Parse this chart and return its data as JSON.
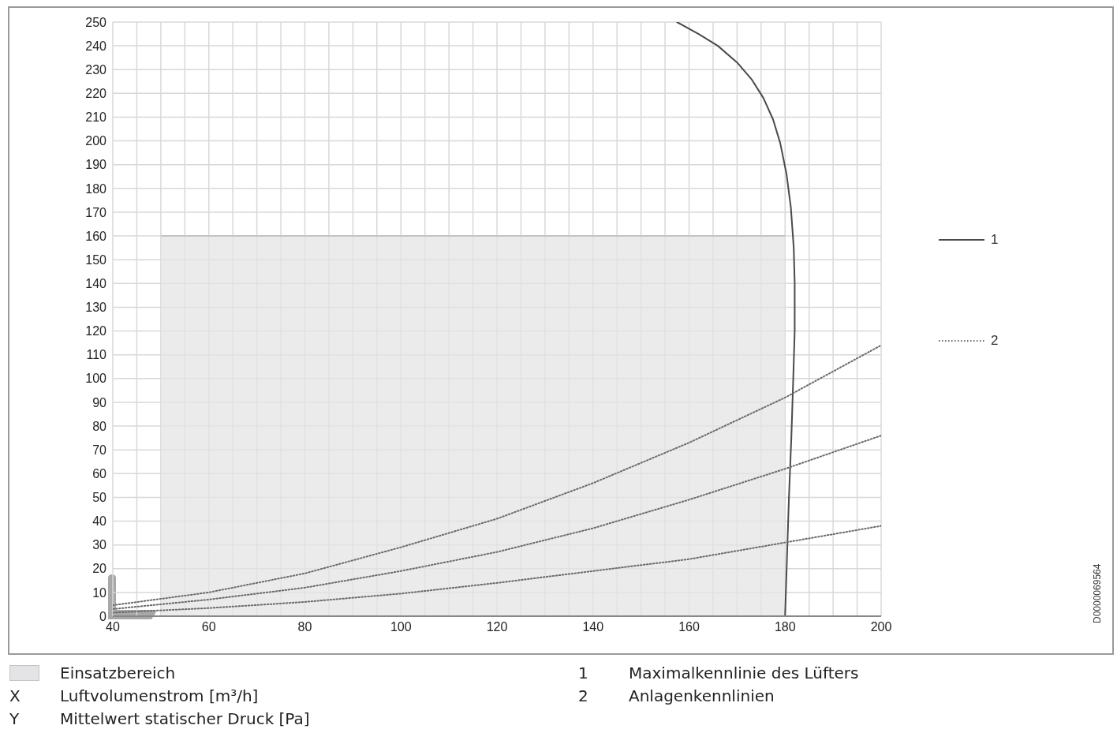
{
  "chart_data": {
    "type": "line",
    "xlabel": "X Luftvolumenstrom [m³/h]",
    "ylabel": "Y Mittelwert statischer Druck [Pa]",
    "xlim": [
      40,
      200
    ],
    "xticks": [
      40,
      {
        "value": 45,
        "label": null
      },
      {
        "value": 50,
        "label": null
      },
      {
        "value": 55,
        "label": null
      },
      60,
      {
        "value": 65,
        "label": null
      },
      {
        "value": 70,
        "label": null
      },
      {
        "value": 75,
        "label": null
      },
      80,
      {
        "value": 85,
        "label": null
      },
      {
        "value": 90,
        "label": null
      },
      {
        "value": 95,
        "label": null
      },
      100,
      {
        "value": 105,
        "label": null
      },
      {
        "value": 110,
        "label": null
      },
      {
        "value": 115,
        "label": null
      },
      120,
      {
        "value": 125,
        "label": null
      },
      {
        "value": 130,
        "label": null
      },
      {
        "value": 135,
        "label": null
      },
      140,
      {
        "value": 145,
        "label": null
      },
      {
        "value": 150,
        "label": null
      },
      {
        "value": 155,
        "label": null
      },
      160,
      {
        "value": 165,
        "label": null
      },
      {
        "value": 170,
        "label": null
      },
      {
        "value": 175,
        "label": null
      },
      180,
      {
        "value": 185,
        "label": null
      },
      {
        "value": 190,
        "label": null
      },
      {
        "value": 195,
        "label": null
      },
      200
    ],
    "ylim": [
      0,
      250
    ],
    "yticks": [
      0,
      10,
      20,
      30,
      40,
      50,
      60,
      70,
      80,
      90,
      100,
      110,
      120,
      130,
      140,
      150,
      160,
      170,
      180,
      190,
      200,
      210,
      220,
      230,
      240,
      250
    ],
    "grid": true,
    "legend": "right",
    "series": [
      {
        "name": "Einsatzbereich",
        "type": "area",
        "color": "#e4e4e6",
        "x": [
          50,
          180
        ],
        "values": [
          160,
          160
        ]
      },
      {
        "name": "1",
        "color": "#4a4a4a",
        "line_style": "solid",
        "x": [
          157.5,
          162,
          166,
          170,
          173,
          175.5,
          177.5,
          179,
          180.3,
          181.2,
          181.8,
          182,
          182,
          181.7,
          181.3,
          180.8,
          180.4,
          180,
          200
        ],
        "values": [
          250,
          245,
          240,
          233,
          226,
          218,
          209,
          199,
          186,
          172,
          155,
          140,
          120,
          100,
          75,
          50,
          25,
          0,
          0
        ]
      },
      {
        "name": "2",
        "color": "#6a6a6a",
        "line_style": "dotted",
        "x": [
          40,
          60,
          80,
          100,
          120,
          140,
          160,
          180,
          200
        ],
        "values": [
          4.6,
          10,
          18,
          29,
          41,
          56,
          73,
          92,
          114
        ]
      },
      {
        "color": "#6a6a6a",
        "line_style": "dotted",
        "x": [
          40,
          60,
          80,
          100,
          120,
          140,
          160,
          180,
          200
        ],
        "values": [
          3,
          7,
          12,
          19,
          27,
          37,
          49,
          62,
          76
        ]
      },
      {
        "color": "#6a6a6a",
        "line_style": "dotted",
        "x": [
          40,
          60,
          80,
          100,
          120,
          140,
          160,
          180,
          200
        ],
        "values": [
          1.5,
          3.4,
          6,
          9.5,
          14,
          19,
          24,
          31,
          38
        ]
      }
    ],
    "annotations": [
      "1 Maximalkennlinie des Lüfters",
      "2 Anlagenkennlinien",
      "D0000069564"
    ]
  }
}
